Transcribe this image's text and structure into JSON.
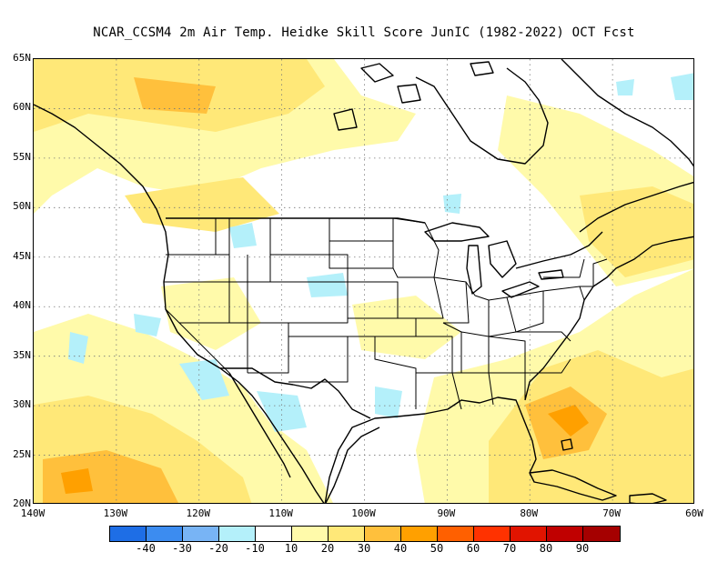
{
  "title": "NCAR_CCSM4  2m Air Temp. Heidke Skill Score JunIC (1982-2022) OCT Fcst",
  "lat_labels": [
    "65N",
    "60N",
    "55N",
    "50N",
    "45N",
    "40N",
    "35N",
    "30N",
    "25N",
    "20N"
  ],
  "lon_labels": [
    "140W",
    "130W",
    "120W",
    "110W",
    "100W",
    "90W",
    "80W",
    "70W",
    "60W"
  ],
  "colorbar": {
    "colors": [
      "#1e6ee6",
      "#3c8cf0",
      "#78b4f5",
      "#b4f0fa",
      "#ffffff",
      "#fffaaa",
      "#ffe878",
      "#ffc03c",
      "#ffa000",
      "#ff6000",
      "#ff3200",
      "#e11400",
      "#c00000",
      "#a50000"
    ],
    "ticks": [
      "-40",
      "-30",
      "-20",
      "-10",
      "10",
      "20",
      "30",
      "40",
      "50",
      "60",
      "70",
      "80",
      "90"
    ]
  },
  "map": {
    "extent": {
      "lon_min": -140,
      "lon_max": -60,
      "lat_min": 20,
      "lat_max": 65
    },
    "field_colors": {
      "positive_weak": "#fffaaa",
      "positive": "#ffe878",
      "positive_strong": "#ffc03c",
      "positive_max": "#ffa000",
      "negative": "#b4f0fa"
    },
    "gridlines": "dotted"
  }
}
